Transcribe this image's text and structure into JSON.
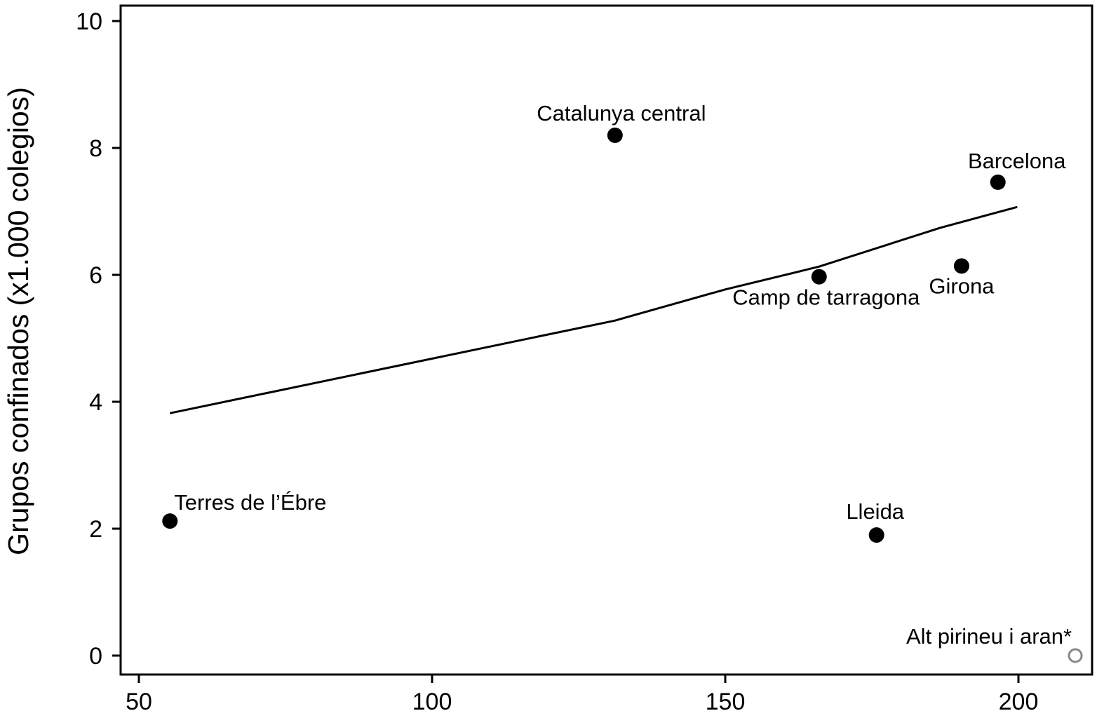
{
  "chart_data": {
    "type": "scatter",
    "title": "",
    "xlabel": "",
    "ylabel": "Grupos confinados (x1.000 colegios)",
    "xlim": [
      47,
      212
    ],
    "ylim": [
      -0.3,
      10.3
    ],
    "xticks": [
      50,
      100,
      150,
      200
    ],
    "yticks": [
      0,
      2,
      4,
      6,
      8,
      10
    ],
    "grid": false,
    "points": [
      {
        "label": "Terres de l’Ébre",
        "x": 55.3,
        "y": 2.12,
        "filled": true
      },
      {
        "label": "Catalunya central",
        "x": 131.2,
        "y": 8.2,
        "filled": true
      },
      {
        "label": "Camp de tarragona",
        "x": 166.0,
        "y": 5.97,
        "filled": true
      },
      {
        "label": "Lleida",
        "x": 175.8,
        "y": 1.9,
        "filled": true
      },
      {
        "label": "Girona",
        "x": 190.3,
        "y": 6.14,
        "filled": true
      },
      {
        "label": "Barcelona",
        "x": 196.5,
        "y": 7.46,
        "filled": true
      },
      {
        "label": "Alt pirineu i aran*",
        "x": 209.7,
        "y": 0,
        "filled": false
      }
    ],
    "fit_line": {
      "x": [
        55.3,
        131.2,
        150,
        166,
        186.6,
        199.8
      ],
      "y": [
        3.82,
        5.28,
        5.77,
        6.13,
        6.74,
        7.07
      ]
    },
    "colors": {
      "point": "#000000",
      "open_point": "#888888",
      "line": "#000000"
    }
  }
}
